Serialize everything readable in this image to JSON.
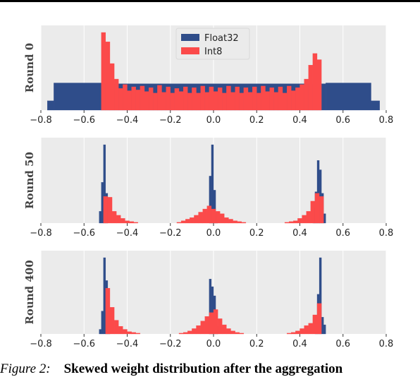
{
  "caption": {
    "figure_label": "Figure 2:",
    "text": "Skewed weight distribution after the aggregation"
  },
  "colors": {
    "float32": "#2f4d8a",
    "int8": "#fb4a4a",
    "panel_bg": "#ebebeb"
  },
  "chart_data": [
    {
      "type": "histogram",
      "ylabel": "Round 0",
      "xlim": [
        -0.8,
        0.8
      ],
      "xticks": [
        "−0.8",
        "−0.6",
        "−0.4",
        "−0.2",
        "0.0",
        "0.2",
        "0.4",
        "0.6",
        "0.8"
      ],
      "legend": {
        "placement": "top-center",
        "entries": [
          "Float32",
          "Int8"
        ]
      },
      "series": [
        {
          "name": "Float32",
          "bins": [
            [
              -0.77,
              -0.74,
              0.12
            ],
            [
              -0.74,
              -0.52,
              0.35
            ],
            [
              -0.52,
              0.52,
              0.34
            ],
            [
              0.52,
              0.73,
              0.35
            ],
            [
              0.73,
              0.77,
              0.12
            ]
          ]
        },
        {
          "name": "Int8",
          "bins": [
            [
              -0.52,
              -0.5,
              1.0
            ],
            [
              -0.5,
              -0.48,
              0.88
            ],
            [
              -0.48,
              -0.46,
              0.6
            ],
            [
              -0.46,
              -0.44,
              0.4
            ],
            [
              -0.44,
              -0.42,
              0.28
            ],
            [
              -0.42,
              -0.4,
              0.33
            ],
            [
              -0.4,
              -0.38,
              0.25
            ],
            [
              -0.38,
              -0.36,
              0.3
            ],
            [
              -0.36,
              -0.34,
              0.26
            ],
            [
              -0.34,
              -0.32,
              0.31
            ],
            [
              -0.32,
              -0.3,
              0.24
            ],
            [
              -0.3,
              -0.28,
              0.29
            ],
            [
              -0.28,
              -0.26,
              0.22
            ],
            [
              -0.26,
              -0.24,
              0.32
            ],
            [
              -0.24,
              -0.22,
              0.23
            ],
            [
              -0.22,
              -0.2,
              0.3
            ],
            [
              -0.2,
              -0.18,
              0.22
            ],
            [
              -0.18,
              -0.16,
              0.28
            ],
            [
              -0.16,
              -0.14,
              0.24
            ],
            [
              -0.14,
              -0.12,
              0.3
            ],
            [
              -0.12,
              -0.1,
              0.22
            ],
            [
              -0.1,
              -0.08,
              0.29
            ],
            [
              -0.08,
              -0.06,
              0.22
            ],
            [
              -0.06,
              -0.04,
              0.31
            ],
            [
              -0.04,
              -0.02,
              0.23
            ],
            [
              -0.02,
              0.0,
              0.3
            ],
            [
              0.0,
              0.02,
              0.24
            ],
            [
              0.02,
              0.04,
              0.29
            ],
            [
              0.04,
              0.06,
              0.22
            ],
            [
              0.06,
              0.08,
              0.31
            ],
            [
              0.08,
              0.1,
              0.23
            ],
            [
              0.1,
              0.12,
              0.3
            ],
            [
              0.12,
              0.14,
              0.22
            ],
            [
              0.14,
              0.16,
              0.29
            ],
            [
              0.16,
              0.18,
              0.23
            ],
            [
              0.18,
              0.2,
              0.3
            ],
            [
              0.2,
              0.22,
              0.22
            ],
            [
              0.22,
              0.24,
              0.31
            ],
            [
              0.24,
              0.26,
              0.24
            ],
            [
              0.26,
              0.28,
              0.29
            ],
            [
              0.28,
              0.3,
              0.23
            ],
            [
              0.3,
              0.32,
              0.3
            ],
            [
              0.32,
              0.34,
              0.22
            ],
            [
              0.34,
              0.36,
              0.31
            ],
            [
              0.36,
              0.38,
              0.25
            ],
            [
              0.38,
              0.4,
              0.29
            ],
            [
              0.4,
              0.42,
              0.33
            ],
            [
              0.42,
              0.44,
              0.4
            ],
            [
              0.44,
              0.46,
              0.58
            ],
            [
              0.46,
              0.48,
              0.73
            ],
            [
              0.48,
              0.5,
              0.65
            ]
          ]
        }
      ]
    },
    {
      "type": "histogram",
      "ylabel": "Round 50",
      "xlim": [
        -0.8,
        0.8
      ],
      "xticks": [
        "−0.8",
        "−0.6",
        "−0.4",
        "−0.2",
        "0.0",
        "0.2",
        "0.4",
        "0.6",
        "0.8"
      ],
      "series": [
        {
          "name": "Float32",
          "bins": [
            [
              -0.53,
              -0.52,
              0.15
            ],
            [
              -0.52,
              -0.51,
              0.52
            ],
            [
              -0.51,
              -0.5,
              1.0
            ],
            [
              -0.5,
              -0.49,
              0.38
            ],
            [
              -0.02,
              -0.01,
              0.6
            ],
            [
              -0.01,
              0.0,
              1.0
            ],
            [
              0.0,
              0.01,
              0.42
            ],
            [
              0.01,
              0.02,
              0.12
            ],
            [
              0.46,
              0.47,
              0.2
            ],
            [
              0.47,
              0.48,
              0.4
            ],
            [
              0.48,
              0.49,
              0.8
            ],
            [
              0.49,
              0.5,
              0.68
            ],
            [
              0.5,
              0.51,
              0.38
            ],
            [
              0.51,
              0.52,
              0.12
            ]
          ]
        },
        {
          "name": "Int8",
          "bins": [
            [
              -0.51,
              -0.49,
              0.34
            ],
            [
              -0.49,
              -0.47,
              0.33
            ],
            [
              -0.47,
              -0.45,
              0.15
            ],
            [
              -0.45,
              -0.43,
              0.1
            ],
            [
              -0.43,
              -0.41,
              0.06
            ],
            [
              -0.41,
              -0.39,
              0.03
            ],
            [
              -0.39,
              -0.37,
              0.02
            ],
            [
              -0.37,
              -0.35,
              0.01
            ],
            [
              -0.17,
              -0.15,
              0.01
            ],
            [
              -0.15,
              -0.13,
              0.03
            ],
            [
              -0.13,
              -0.11,
              0.05
            ],
            [
              -0.11,
              -0.09,
              0.07
            ],
            [
              -0.09,
              -0.07,
              0.1
            ],
            [
              -0.07,
              -0.05,
              0.14
            ],
            [
              -0.05,
              -0.03,
              0.18
            ],
            [
              -0.03,
              -0.01,
              0.22
            ],
            [
              -0.01,
              0.01,
              0.18
            ],
            [
              0.01,
              0.03,
              0.15
            ],
            [
              0.03,
              0.05,
              0.12
            ],
            [
              0.05,
              0.07,
              0.07
            ],
            [
              0.07,
              0.09,
              0.05
            ],
            [
              0.09,
              0.11,
              0.03
            ],
            [
              0.11,
              0.13,
              0.02
            ],
            [
              0.13,
              0.15,
              0.01
            ],
            [
              0.33,
              0.35,
              0.01
            ],
            [
              0.35,
              0.37,
              0.02
            ],
            [
              0.37,
              0.39,
              0.03
            ],
            [
              0.39,
              0.41,
              0.06
            ],
            [
              0.41,
              0.43,
              0.1
            ],
            [
              0.43,
              0.45,
              0.15
            ],
            [
              0.45,
              0.47,
              0.28
            ],
            [
              0.47,
              0.49,
              0.38
            ],
            [
              0.49,
              0.51,
              0.34
            ]
          ]
        }
      ]
    },
    {
      "type": "histogram",
      "ylabel": "Round 400",
      "xlim": [
        -0.8,
        0.8
      ],
      "xticks": [
        "−0.8",
        "−0.6",
        "−0.4",
        "−0.2",
        "0.0",
        "0.2",
        "0.4",
        "0.6",
        "0.8"
      ],
      "series": [
        {
          "name": "Float32",
          "bins": [
            [
              -0.53,
              -0.52,
              0.06
            ],
            [
              -0.52,
              -0.51,
              0.3
            ],
            [
              -0.51,
              -0.5,
              1.0
            ],
            [
              -0.5,
              -0.49,
              0.7
            ],
            [
              -0.49,
              -0.48,
              0.12
            ],
            [
              -0.02,
              -0.01,
              0.72
            ],
            [
              -0.01,
              0.0,
              0.62
            ],
            [
              0.0,
              0.01,
              0.5
            ],
            [
              0.01,
              0.02,
              0.1
            ],
            [
              0.47,
              0.48,
              0.22
            ],
            [
              0.48,
              0.49,
              0.52
            ],
            [
              0.49,
              0.5,
              1.0
            ],
            [
              0.5,
              0.51,
              0.22
            ],
            [
              0.51,
              0.52,
              0.12
            ]
          ]
        },
        {
          "name": "Int8",
          "bins": [
            [
              -0.5,
              -0.48,
              0.6
            ],
            [
              -0.48,
              -0.46,
              0.35
            ],
            [
              -0.46,
              -0.44,
              0.18
            ],
            [
              -0.44,
              -0.42,
              0.1
            ],
            [
              -0.42,
              -0.4,
              0.06
            ],
            [
              -0.4,
              -0.38,
              0.03
            ],
            [
              -0.38,
              -0.36,
              0.02
            ],
            [
              -0.36,
              -0.34,
              0.01
            ],
            [
              -0.16,
              -0.14,
              0.01
            ],
            [
              -0.14,
              -0.12,
              0.02
            ],
            [
              -0.12,
              -0.1,
              0.04
            ],
            [
              -0.1,
              -0.08,
              0.07
            ],
            [
              -0.08,
              -0.06,
              0.11
            ],
            [
              -0.06,
              -0.04,
              0.17
            ],
            [
              -0.04,
              -0.02,
              0.23
            ],
            [
              -0.02,
              0.0,
              0.28
            ],
            [
              0.0,
              0.02,
              0.32
            ],
            [
              0.02,
              0.04,
              0.2
            ],
            [
              0.04,
              0.06,
              0.12
            ],
            [
              0.06,
              0.08,
              0.07
            ],
            [
              0.08,
              0.1,
              0.04
            ],
            [
              0.1,
              0.12,
              0.02
            ],
            [
              0.12,
              0.14,
              0.01
            ],
            [
              0.34,
              0.36,
              0.01
            ],
            [
              0.36,
              0.38,
              0.02
            ],
            [
              0.38,
              0.4,
              0.04
            ],
            [
              0.4,
              0.42,
              0.07
            ],
            [
              0.42,
              0.44,
              0.11
            ],
            [
              0.44,
              0.46,
              0.14
            ],
            [
              0.46,
              0.48,
              0.25
            ],
            [
              0.48,
              0.5,
              0.4
            ]
          ]
        }
      ]
    }
  ]
}
